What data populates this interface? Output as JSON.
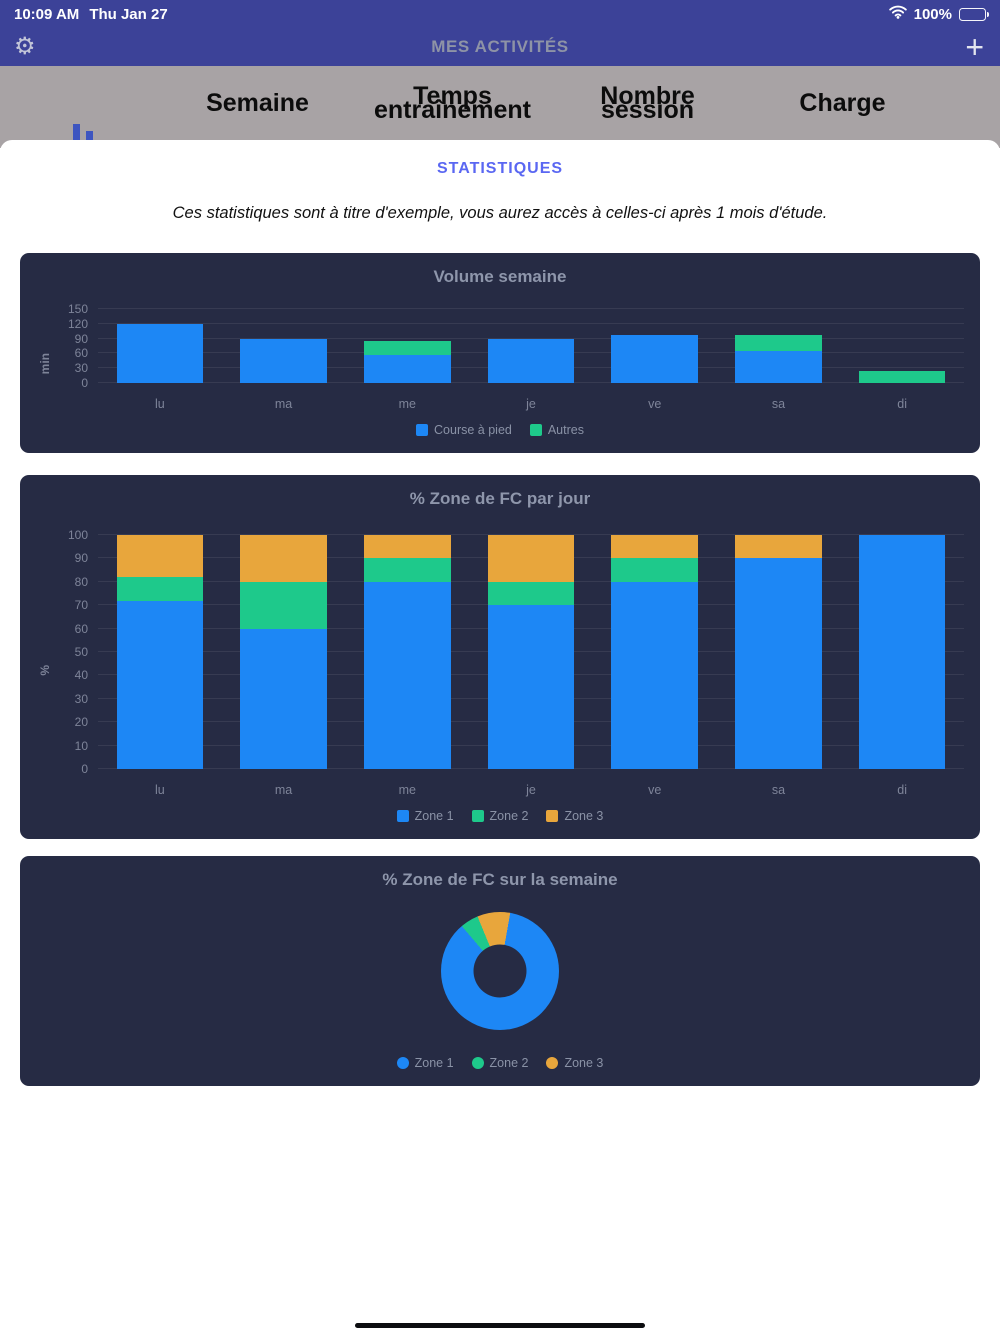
{
  "status_bar": {
    "time": "10:09 AM",
    "date": "Thu Jan 27",
    "battery": "100%"
  },
  "nav": {
    "title": "MES ACTIVITÉS",
    "add_label": "+",
    "gear_icon": "gear",
    "plus_icon": "plus"
  },
  "background_table": {
    "headers": [
      "Semaine",
      "Temps\nentraînement",
      "Nombre\nsession",
      "Charge"
    ]
  },
  "modal": {
    "title": "STATISTIQUES",
    "note": "Ces statistiques sont à titre d'exemple, vous aurez accès à celles-ci après 1 mois d'étude."
  },
  "colors": {
    "header_bg": "#3c4298",
    "card_bg": "#262b44",
    "blue": "#1d87f5",
    "green": "#1ec98b",
    "orange": "#e8a63c",
    "modal_title": "#5a67f2"
  },
  "chart_data": [
    {
      "type": "bar",
      "stacked": true,
      "title": "Volume semaine",
      "ylabel": "min",
      "categories": [
        "lu",
        "ma",
        "me",
        "je",
        "ve",
        "sa",
        "di"
      ],
      "yticks": [
        0,
        30,
        60,
        90,
        120,
        150
      ],
      "ylim": [
        0,
        150
      ],
      "grid": true,
      "legend_position": "bottom",
      "series": [
        {
          "name": "Course à pied",
          "color": "#1d87f5",
          "values": [
            120,
            90,
            56,
            90,
            97,
            65,
            0
          ]
        },
        {
          "name": "Autres",
          "color": "#1ec98b",
          "values": [
            0,
            0,
            30,
            0,
            0,
            32,
            25
          ]
        }
      ]
    },
    {
      "type": "bar",
      "stacked": true,
      "title": "% Zone de FC par jour",
      "ylabel": "%",
      "categories": [
        "lu",
        "ma",
        "me",
        "je",
        "ve",
        "sa",
        "di"
      ],
      "yticks": [
        0,
        10,
        20,
        30,
        40,
        50,
        60,
        70,
        80,
        90,
        100
      ],
      "ylim": [
        0,
        100
      ],
      "grid": true,
      "legend_position": "bottom",
      "series": [
        {
          "name": "Zone 1",
          "color": "#1d87f5",
          "values": [
            72,
            60,
            80,
            70,
            80,
            90,
            100
          ]
        },
        {
          "name": "Zone 2",
          "color": "#1ec98b",
          "values": [
            10,
            20,
            10,
            10,
            10,
            0,
            0
          ]
        },
        {
          "name": "Zone 3",
          "color": "#e8a63c",
          "values": [
            18,
            20,
            10,
            20,
            10,
            10,
            0
          ]
        }
      ]
    },
    {
      "type": "pie",
      "donut": true,
      "title": "% Zone de FC sur la semaine",
      "labels": [
        "Zone 1",
        "Zone 2",
        "Zone 3"
      ],
      "values": [
        86,
        5,
        9
      ],
      "colors": [
        "#1d87f5",
        "#1ec98b",
        "#e8a63c"
      ],
      "legend_position": "bottom"
    }
  ]
}
